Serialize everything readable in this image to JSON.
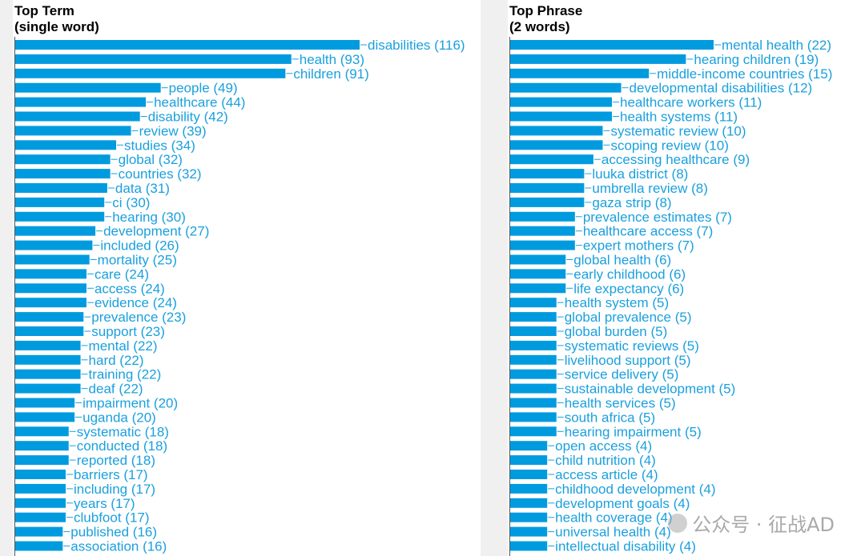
{
  "colors": {
    "bar": "#009bdf",
    "label": "#1aa0de",
    "axis": "#555555",
    "gutter": "#f0f0f0"
  },
  "watermark": {
    "text": "公众号 · 征战AD",
    "icon": "wechat-icon"
  },
  "chart_data": [
    {
      "type": "bar",
      "orientation": "horizontal",
      "title": "Top Term",
      "subtitle": "(single word)",
      "label_format": "{category} ({value})",
      "categories": [
        "disabilities",
        "health",
        "children",
        "people",
        "healthcare",
        "disability",
        "review",
        "studies",
        "global",
        "countries",
        "data",
        "ci",
        "hearing",
        "development",
        "included",
        "mortality",
        "care",
        "access",
        "evidence",
        "prevalence",
        "support",
        "mental",
        "hard",
        "training",
        "deaf",
        "impairment",
        "uganda",
        "systematic",
        "conducted",
        "reported",
        "barriers",
        "including",
        "years",
        "clubfoot",
        "published",
        "association"
      ],
      "values": [
        116,
        93,
        91,
        49,
        44,
        42,
        39,
        34,
        32,
        32,
        31,
        30,
        30,
        27,
        26,
        25,
        24,
        24,
        24,
        23,
        23,
        22,
        22,
        22,
        22,
        20,
        20,
        18,
        18,
        18,
        17,
        17,
        17,
        17,
        16,
        16
      ],
      "labels": [
        "disabilities (116)",
        "health (93)",
        "children (91)",
        "people (49)",
        "healthcare (44)",
        "disability (42)",
        "review (39)",
        "studies (34)",
        "global (32)",
        "countries (32)",
        "data (31)",
        "ci (30)",
        "hearing (30)",
        "development (27)",
        "included (26)",
        "mortality (25)",
        "care (24)",
        "access (24)",
        "evidence (24)",
        "prevalence (23)",
        "support (23)",
        "mental (22)",
        "hard (22)",
        "training (22)",
        "deaf (22)",
        "impairment (20)",
        "uganda (20)",
        "systematic (18)",
        "conducted (18)",
        "reported (18)",
        "barriers (17)",
        "including (17)",
        "years (17)",
        "clubfoot (17)",
        "published (16)",
        "association (16)"
      ],
      "grid": false
    },
    {
      "type": "bar",
      "orientation": "horizontal",
      "title": "Top Phrase",
      "subtitle": "(2 words)",
      "label_format": "{category} ({value})",
      "categories": [
        "mental health",
        "hearing children",
        "middle-income countries",
        "developmental disabilities",
        "healthcare workers",
        "health systems",
        "systematic review",
        "scoping review",
        "accessing healthcare",
        "luuka district",
        "umbrella review",
        "gaza strip",
        "prevalence estimates",
        "healthcare access",
        "expert mothers",
        "global health",
        "early childhood",
        "life expectancy",
        "health system",
        "global prevalence",
        "global burden",
        "systematic reviews",
        "livelihood support",
        "service delivery",
        "sustainable development",
        "health services",
        "south africa",
        "hearing impairment",
        "open access",
        "child nutrition",
        "access article",
        "childhood development",
        "development goals",
        "health coverage",
        "universal health",
        "intellectual disability"
      ],
      "values": [
        22,
        19,
        15,
        12,
        11,
        11,
        10,
        10,
        9,
        8,
        8,
        8,
        7,
        7,
        7,
        6,
        6,
        6,
        5,
        5,
        5,
        5,
        5,
        5,
        5,
        5,
        5,
        5,
        4,
        4,
        4,
        4,
        4,
        4,
        4,
        4
      ],
      "labels": [
        "mental health (22)",
        "hearing children (19)",
        "middle-income countries (15)",
        "developmental disabilities (12)",
        "healthcare workers (11)",
        "health systems (11)",
        "systematic review (10)",
        "scoping review (10)",
        "accessing healthcare (9)",
        "luuka district (8)",
        "umbrella review (8)",
        "gaza strip (8)",
        "prevalence estimates (7)",
        "healthcare access (7)",
        "expert mothers (7)",
        "global health (6)",
        "early childhood (6)",
        "life expectancy (6)",
        "health system (5)",
        "global prevalence (5)",
        "global burden (5)",
        "systematic reviews (5)",
        "livelihood support (5)",
        "service delivery (5)",
        "sustainable development (5)",
        "health services (5)",
        "south africa (5)",
        "hearing impairment (5)",
        "open access (4)",
        "child nutrition (4)",
        "access article (4)",
        "childhood development (4)",
        "development goals (4)",
        "health coverage (4)",
        "universal health (4)",
        "intellectual disability (4)"
      ],
      "grid": false
    }
  ]
}
